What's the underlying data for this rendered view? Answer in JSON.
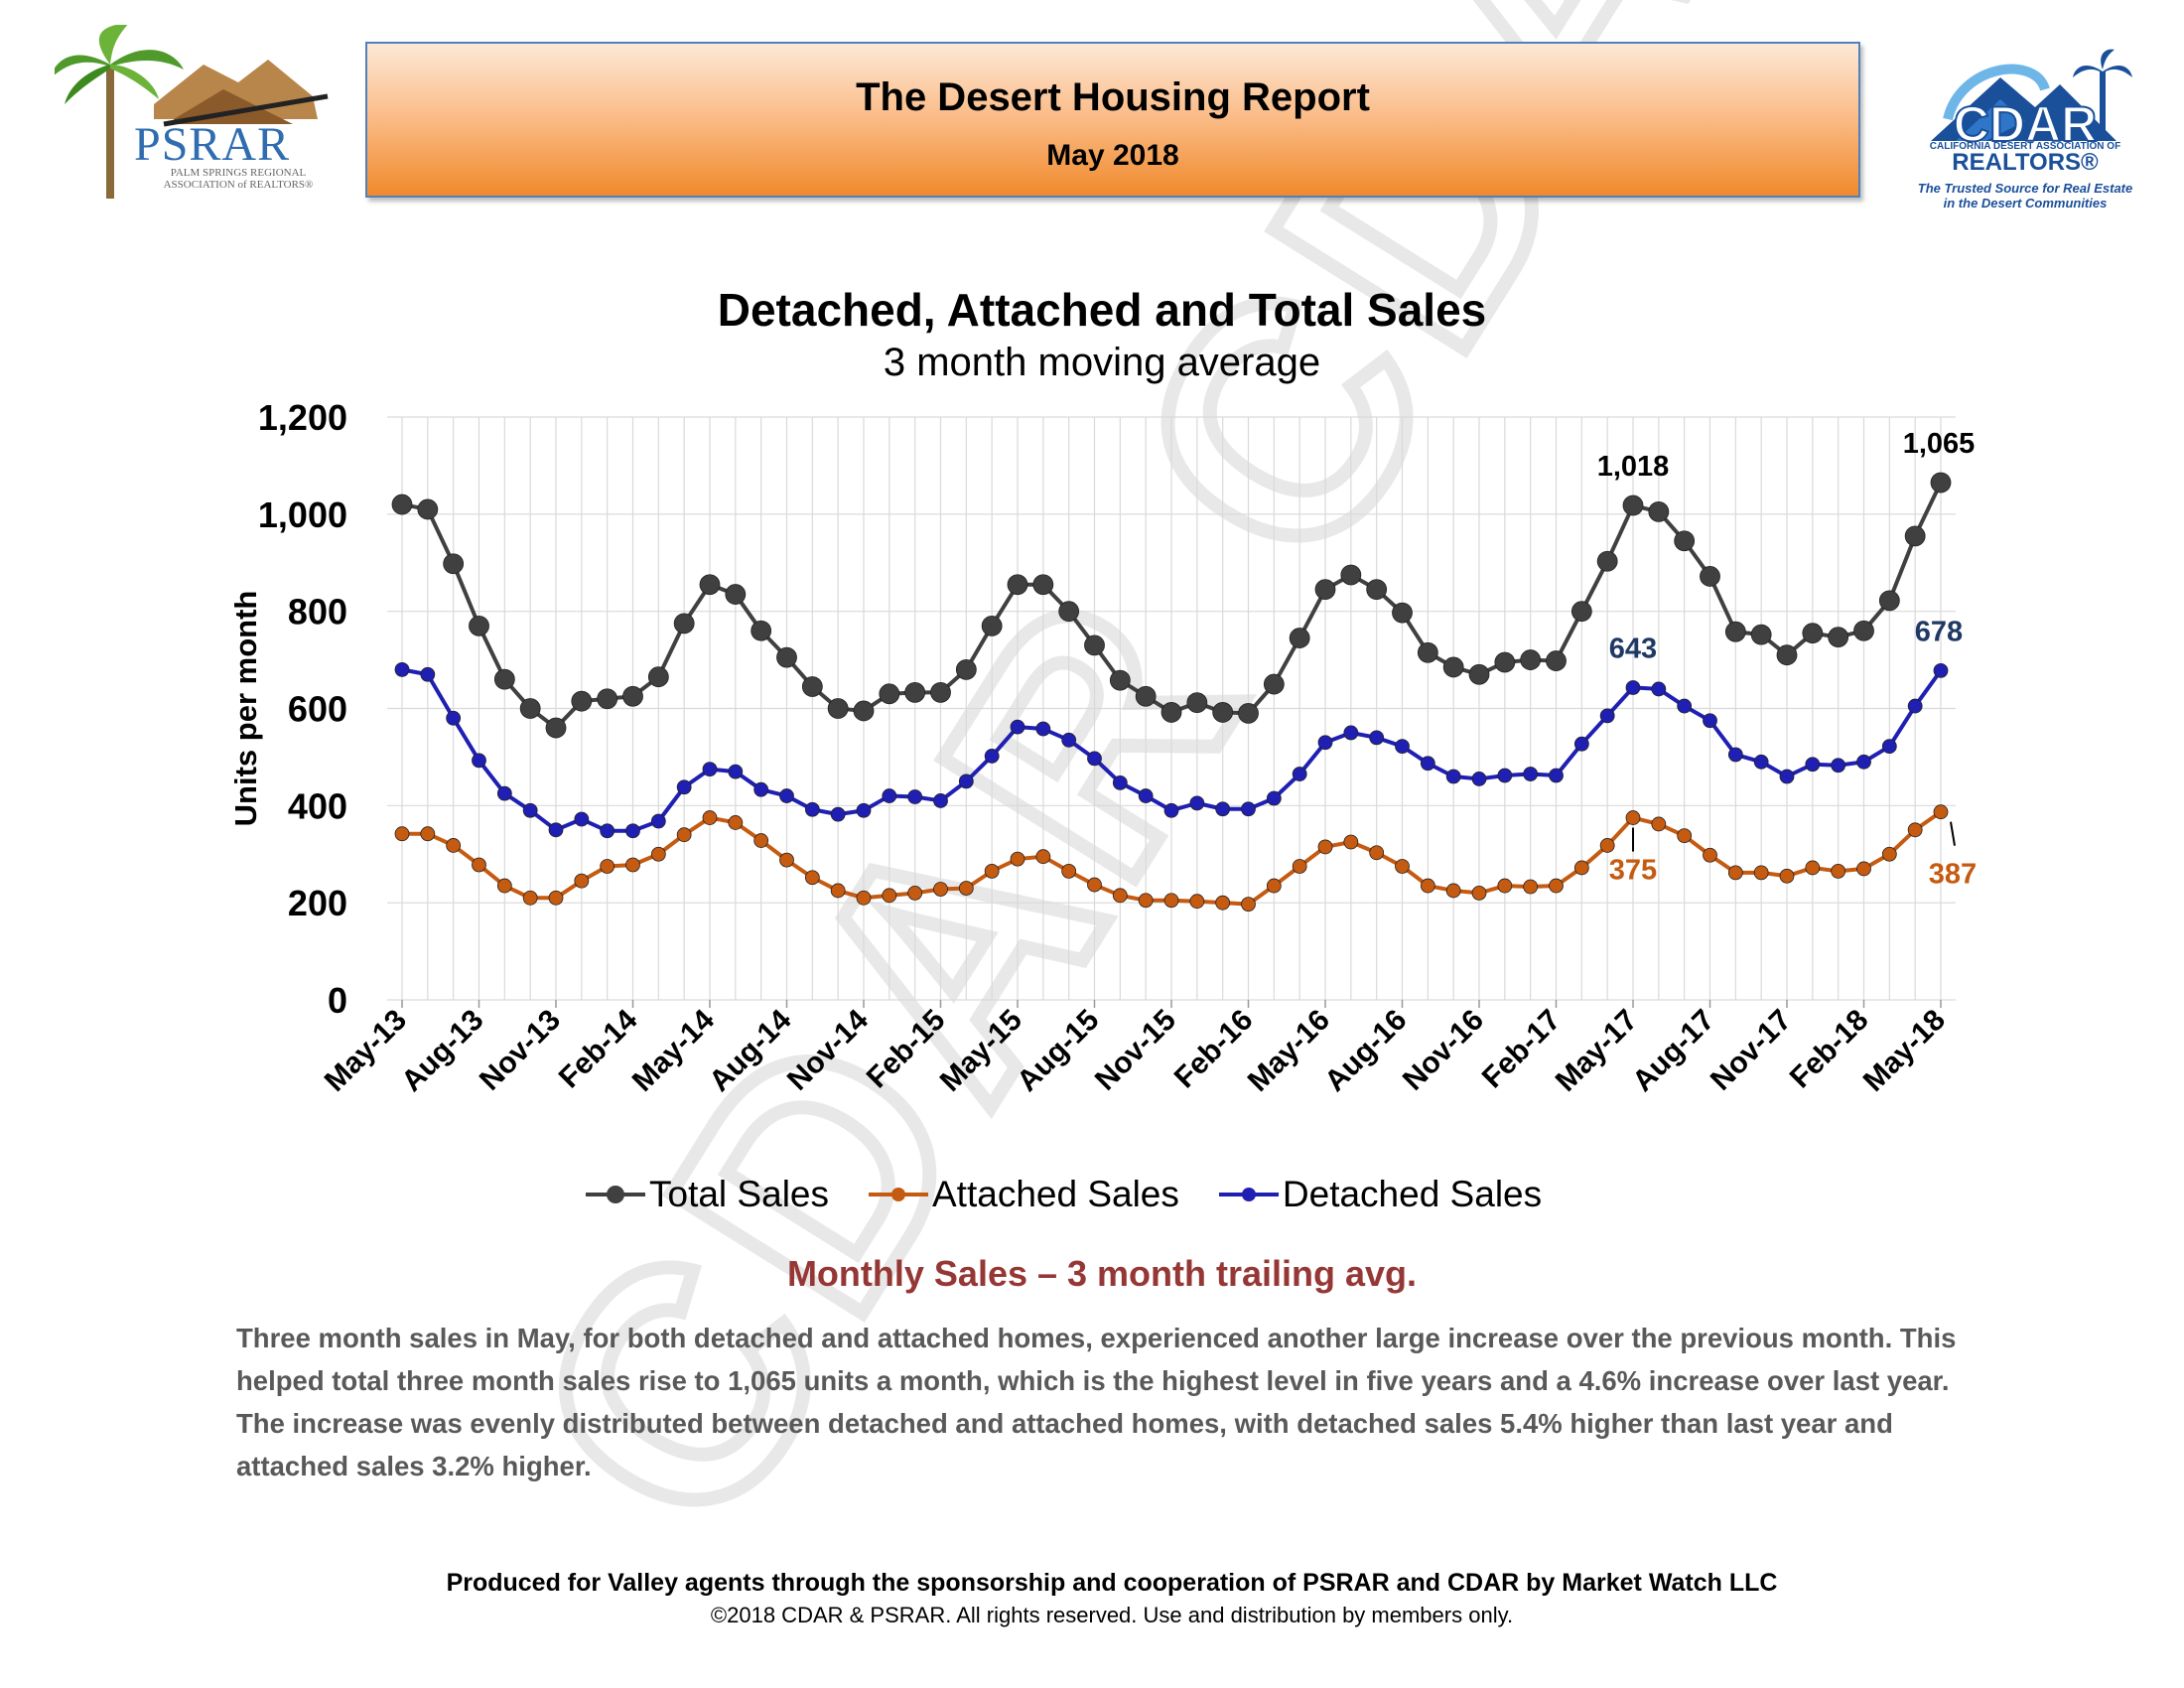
{
  "header": {
    "title": "The Desert Housing Report",
    "date": "May 2018"
  },
  "psrar_logo": {
    "word": "PSRAR",
    "sub": "PALM SPRINGS REGIONAL ASSOCIATION of REALTORS®"
  },
  "cdar_logo": {
    "association": "CALIFORNIA DESERT ASSOCIATION OF",
    "realtors": "REALTORS®",
    "tagline_1": "The Trusted Source for Real Estate",
    "tagline_2": "in the Desert Communities"
  },
  "watermark_text": "CDAR CDAR",
  "chart_data": {
    "type": "line",
    "title": "Detached, Attached and Total Sales",
    "subtitle": "3 month moving average",
    "ylabel": "Units per month",
    "xlabel": "",
    "ylim": [
      0,
      1200
    ],
    "yticks": [
      "0",
      "200",
      "400",
      "600",
      "800",
      "1,000",
      "1,200"
    ],
    "grid": true,
    "legend_position": "bottom",
    "x_tick_labels": [
      "May-13",
      "Aug-13",
      "Nov-13",
      "Feb-14",
      "May-14",
      "Aug-14",
      "Nov-14",
      "Feb-15",
      "May-15",
      "Aug-15",
      "Nov-15",
      "Feb-16",
      "May-16",
      "Aug-16",
      "Nov-16",
      "Feb-17",
      "May-17",
      "Aug-17",
      "Nov-17",
      "Feb-18",
      "May-18"
    ],
    "series": [
      {
        "name": "Total Sales",
        "color": "#404040",
        "values": [
          1020,
          1010,
          898,
          770,
          660,
          600,
          560,
          615,
          620,
          625,
          665,
          775,
          855,
          835,
          760,
          705,
          645,
          600,
          595,
          630,
          633,
          633,
          680,
          770,
          855,
          855,
          800,
          730,
          658,
          625,
          592,
          612,
          592,
          590,
          650,
          745,
          845,
          875,
          845,
          797,
          715,
          685,
          670,
          695,
          700,
          698,
          800,
          903,
          1018,
          1005,
          945,
          872,
          758,
          752,
          710,
          755,
          747,
          760,
          822,
          955,
          1065
        ]
      },
      {
        "name": "Attached Sales",
        "color": "#c55a11",
        "values": [
          342,
          342,
          318,
          278,
          235,
          210,
          210,
          245,
          275,
          278,
          300,
          340,
          375,
          365,
          328,
          288,
          252,
          225,
          210,
          215,
          220,
          228,
          230,
          265,
          290,
          295,
          265,
          237,
          215,
          205,
          205,
          203,
          200,
          197,
          235,
          275,
          315,
          325,
          303,
          275,
          235,
          225,
          220,
          235,
          233,
          235,
          272,
          318,
          375,
          362,
          338,
          298,
          262,
          262,
          255,
          272,
          265,
          270,
          300,
          350,
          387
        ]
      },
      {
        "name": "Detached Sales",
        "color": "#1f1fb4",
        "values": [
          680,
          670,
          580,
          493,
          425,
          390,
          350,
          372,
          348,
          348,
          368,
          438,
          475,
          470,
          433,
          420,
          392,
          382,
          390,
          420,
          418,
          410,
          450,
          502,
          562,
          558,
          535,
          497,
          447,
          420,
          390,
          405,
          393,
          393,
          415,
          465,
          530,
          550,
          540,
          522,
          487,
          460,
          455,
          462,
          465,
          462,
          527,
          585,
          643,
          640,
          605,
          575,
          505,
          490,
          460,
          485,
          483,
          490,
          522,
          605,
          678
        ]
      }
    ],
    "annotations": [
      {
        "series": "Total Sales",
        "point": "May-17",
        "text": "1,018",
        "color": "#000000"
      },
      {
        "series": "Total Sales",
        "point": "May-18",
        "text": "1,065",
        "color": "#000000"
      },
      {
        "series": "Detached Sales",
        "point": "May-17",
        "text": "643",
        "color": "#1f3864"
      },
      {
        "series": "Detached Sales",
        "point": "May-18",
        "text": "678",
        "color": "#1f3864"
      },
      {
        "series": "Attached Sales",
        "point": "May-17",
        "text": "375",
        "color": "#c55a11"
      },
      {
        "series": "Attached Sales",
        "point": "May-18",
        "text": "387",
        "color": "#c55a11"
      }
    ]
  },
  "caption": "Monthly Sales – 3 month trailing avg.",
  "commentary": "Three month sales in May, for both detached and attached homes, experienced another large increase over the previous month. This helped total three month sales rise to 1,065 units a month, which is the highest level in five years and a 4.6% increase over last year. The increase was evenly distributed between detached and attached homes, with detached sales 5.4% higher than last year and attached sales 3.2% higher.",
  "footer": {
    "sponsor": "Produced for Valley agents through the sponsorship and cooperation of PSRAR and CDAR by Market Watch LLC",
    "copyright": "©2018 CDAR & PSRAR.  All rights reserved.  Use and distribution by members only."
  }
}
